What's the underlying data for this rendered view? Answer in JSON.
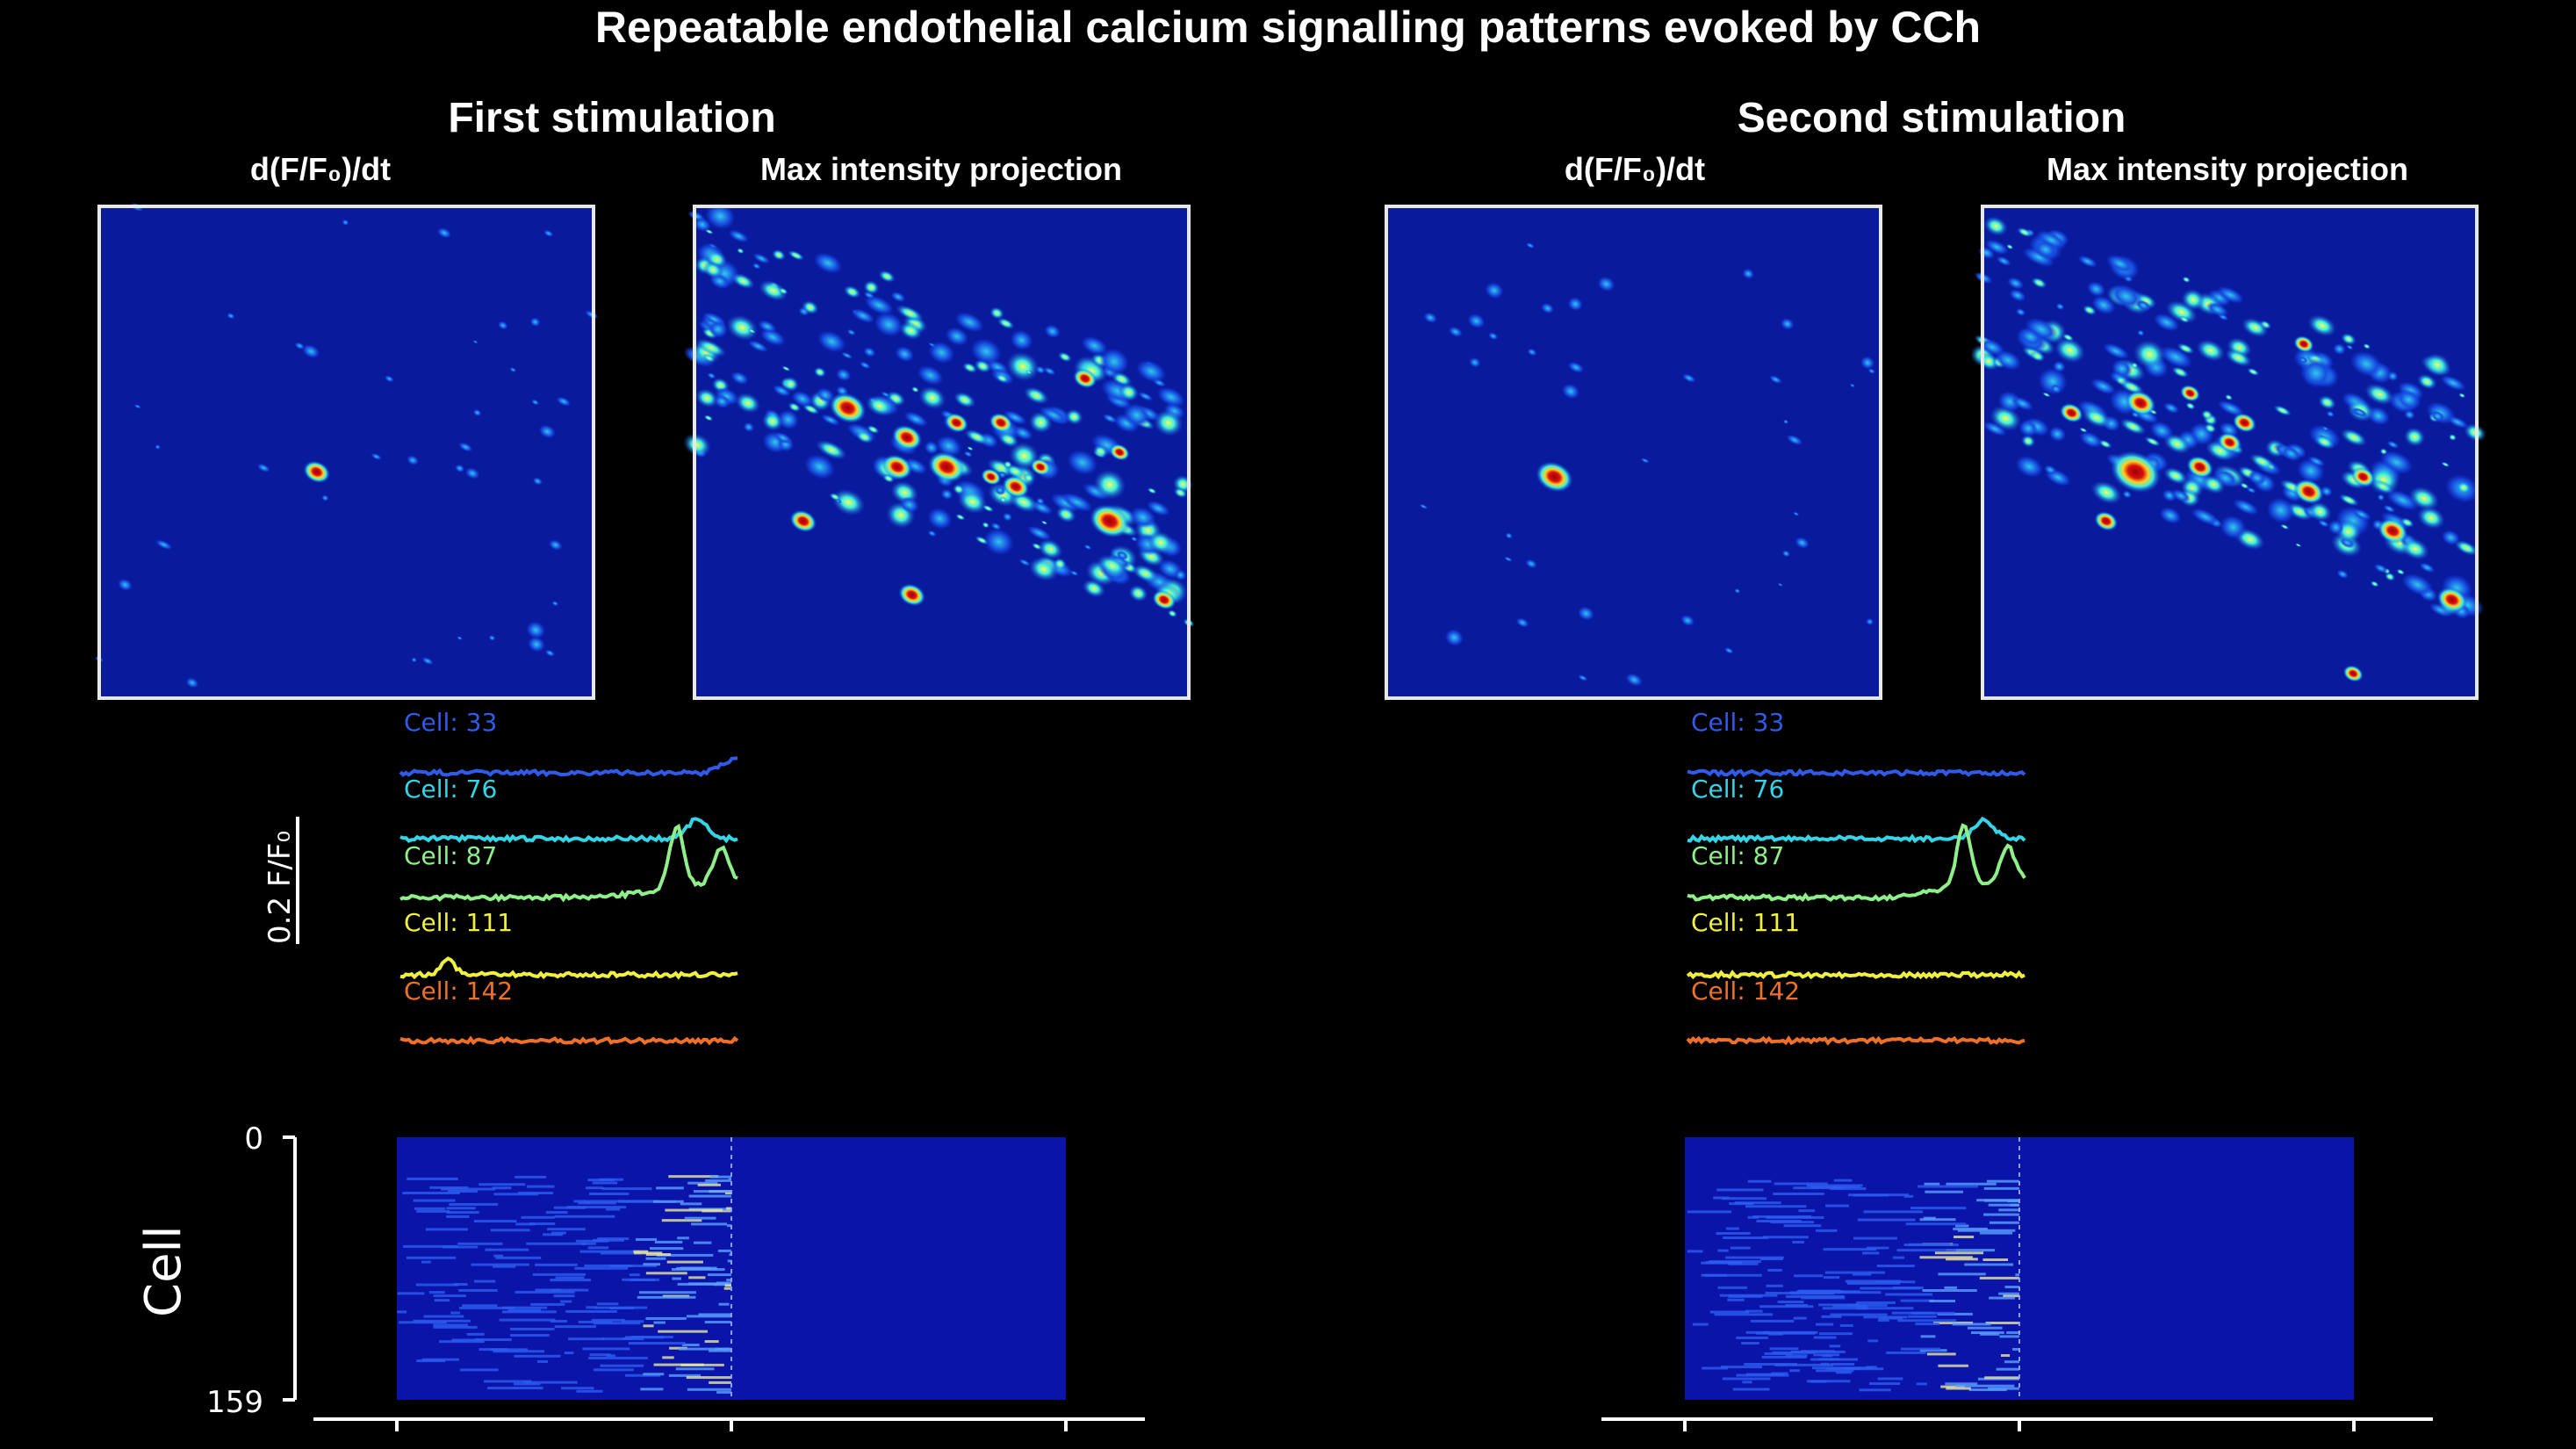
{
  "title": "Repeatable endothelial calcium signalling patterns evoked by CCh",
  "panels": [
    {
      "heading": "First stimulation",
      "left_label": "d(F/F₀)/dt",
      "right_label": "Max intensity projection"
    },
    {
      "heading": "Second stimulation",
      "left_label": "d(F/F₀)/dt",
      "right_label": "Max intensity projection"
    }
  ],
  "traces": [
    {
      "label": "Cell: 33",
      "color": "#2f5be8"
    },
    {
      "label": "Cell: 76",
      "color": "#35d4e6"
    },
    {
      "label": "Cell: 87",
      "color": "#8ff08a"
    },
    {
      "label": "Cell: 111",
      "color": "#f0f040"
    },
    {
      "label": "Cell: 142",
      "color": "#f0702a"
    }
  ],
  "scale_bar_label": "0.2 F/F₀",
  "heatmap": {
    "ylabel": "Cell",
    "ytick_top": "0",
    "ytick_bottom": "159"
  },
  "colors": {
    "background": "#000000",
    "image_bg": "#0a1a9c",
    "hot_spot": "#b0100a",
    "frame": "#e8e8e8"
  }
}
